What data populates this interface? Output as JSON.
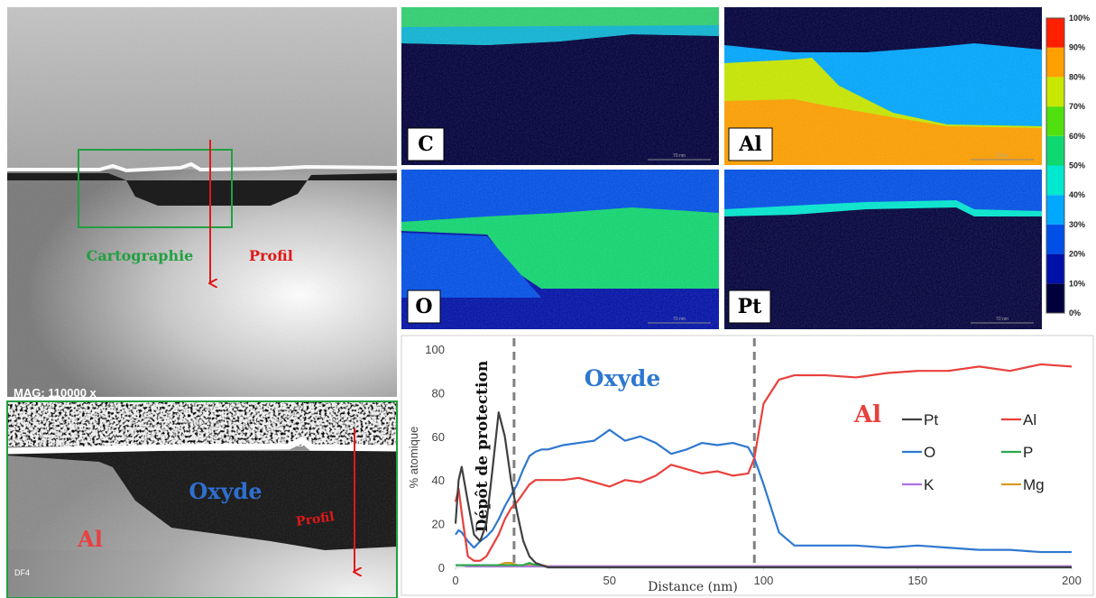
{
  "images": {
    "sem": {
      "mag": "MAG: 110000 x",
      "map_label": "Cartographie",
      "profile_label": "Profil"
    },
    "detail": {
      "oxide": "Oxyde",
      "profile": "Profil",
      "metal": "Al",
      "tag": "DF4"
    },
    "maps": [
      {
        "label": "C",
        "scale": "70 nm"
      },
      {
        "label": "Al",
        "scale": "70 nm"
      },
      {
        "label": "O",
        "scale": "70 nm"
      },
      {
        "label": "Pt",
        "scale": "70 nm"
      }
    ],
    "colorbar": {
      "lim": [
        0,
        100
      ],
      "ticks": [
        {
          "value": 0,
          "label": "0%"
        },
        {
          "value": 10,
          "label": "10%"
        },
        {
          "value": 20,
          "label": "20%"
        },
        {
          "value": 30,
          "label": "30%"
        },
        {
          "value": 40,
          "label": "40%"
        },
        {
          "value": 50,
          "label": "50%"
        },
        {
          "value": 60,
          "label": "60%"
        },
        {
          "value": 70,
          "label": "70%"
        },
        {
          "value": 80,
          "label": "80%"
        },
        {
          "value": 90,
          "label": "90%"
        },
        {
          "value": 100,
          "label": "100%"
        }
      ],
      "colors": [
        "#00003c",
        "#0010a8",
        "#0050e8",
        "#00a8ff",
        "#00e8d0",
        "#10d870",
        "#50e010",
        "#c8e800",
        "#ffa000",
        "#ff2000"
      ]
    }
  },
  "chart_data": {
    "type": "line",
    "xlabel": "Distance (nm)",
    "ylabel": "% atomique",
    "xlim": [
      0,
      200
    ],
    "xticks": [
      0,
      50,
      100,
      150,
      200
    ],
    "ylim": [
      0,
      100
    ],
    "yticks": [
      0,
      20,
      40,
      60,
      80,
      100
    ],
    "vlines": [
      19,
      97
    ],
    "annotations": [
      "Dépôt de protection",
      "Oxyde",
      "Al"
    ],
    "x": [
      0,
      1,
      2,
      4,
      6,
      8,
      10,
      12,
      14,
      16,
      18,
      20,
      22,
      24,
      26,
      28,
      30,
      35,
      40,
      45,
      50,
      55,
      60,
      65,
      70,
      75,
      80,
      85,
      90,
      95,
      97,
      100,
      105,
      110,
      120,
      130,
      140,
      150,
      160,
      170,
      180,
      190,
      200
    ],
    "series": [
      {
        "name": "Pt",
        "color": "#404040",
        "values": [
          20,
          40,
          46,
          30,
          15,
          12,
          20,
          45,
          71,
          60,
          40,
          25,
          12,
          5,
          2,
          1,
          0,
          0,
          0,
          0,
          0,
          0,
          0,
          0,
          0,
          0,
          0,
          0,
          0,
          0,
          0,
          0,
          0,
          0,
          0,
          0,
          0,
          0,
          0,
          0,
          0,
          0,
          0
        ]
      },
      {
        "name": "Al",
        "color": "#e8403c",
        "values": [
          30,
          36,
          25,
          5,
          3,
          3,
          5,
          10,
          15,
          22,
          27,
          30,
          34,
          38,
          40,
          40,
          40,
          40,
          41,
          39,
          37,
          40,
          39,
          42,
          47,
          45,
          43,
          44,
          42,
          43,
          50,
          75,
          86,
          88,
          88,
          87,
          89,
          90,
          90,
          92,
          90,
          93,
          92
        ]
      },
      {
        "name": "O",
        "color": "#2f78d0",
        "values": [
          15,
          17,
          16,
          12,
          9,
          12,
          14,
          17,
          22,
          28,
          33,
          38,
          45,
          51,
          53,
          54,
          54,
          56,
          57,
          58,
          63,
          58,
          60,
          57,
          52,
          54,
          57,
          56,
          57,
          55,
          50,
          38,
          16,
          10,
          10,
          10,
          9,
          10,
          9,
          8,
          8,
          7,
          7
        ]
      },
      {
        "name": "P",
        "color": "#2ca84c",
        "values": [
          1,
          1,
          1,
          1,
          1,
          1,
          1,
          1,
          1,
          1,
          1,
          1,
          1,
          2,
          1,
          1,
          0,
          0,
          0,
          0,
          0,
          0,
          0,
          0,
          0,
          0,
          0,
          0,
          0,
          0,
          0,
          0,
          0,
          0,
          0,
          0,
          0,
          0,
          0,
          0,
          0,
          0,
          0
        ]
      },
      {
        "name": "K",
        "color": "#b070e0",
        "values": [
          1,
          1,
          1,
          0.5,
          0.5,
          0.5,
          0.5,
          0.5,
          0.5,
          0.5,
          0.5,
          0.5,
          0.5,
          0.5,
          0.5,
          0.5,
          0.5,
          0.5,
          0.5,
          0.5,
          0.5,
          0.5,
          0.5,
          0.5,
          0.5,
          0.5,
          0.5,
          0.5,
          0.5,
          0.5,
          0.5,
          0.5,
          0.5,
          0.5,
          0.5,
          0.5,
          0.5,
          0.5,
          0.5,
          0.5,
          0.5,
          0.5,
          0.5
        ]
      },
      {
        "name": "Mg",
        "color": "#d89a20",
        "values": [
          1,
          1,
          1,
          1,
          1,
          1,
          1,
          1,
          1,
          2,
          2,
          1,
          1,
          1,
          1,
          1,
          0.5,
          0.5,
          0.5,
          0.5,
          0.5,
          0.5,
          0.5,
          0.5,
          0.5,
          0.5,
          0.5,
          0.5,
          0.5,
          0.5,
          0.5,
          0.5,
          0.5,
          0.5,
          0.5,
          0.5,
          0.5,
          0.5,
          0.5,
          0.5,
          0.5,
          0.5,
          0.5
        ]
      }
    ],
    "legend": "inside-right"
  }
}
